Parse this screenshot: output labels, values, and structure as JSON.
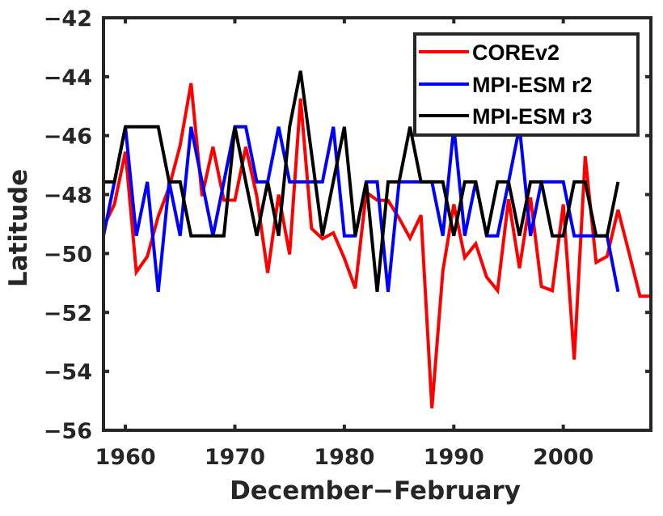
{
  "chart_data": {
    "type": "line",
    "title": "",
    "xlabel": "December−February",
    "ylabel": "Latitude",
    "xlim": [
      1958,
      2008
    ],
    "ylim": [
      -56,
      -42
    ],
    "xticks": [
      1960,
      1970,
      1980,
      1990,
      2000
    ],
    "xtick_labels": [
      "1960",
      "1970",
      "1980",
      "1990",
      "2000"
    ],
    "yticks": [
      -42,
      -44,
      -46,
      -48,
      -50,
      -52,
      -54,
      -56
    ],
    "ytick_labels": [
      "−42",
      "−44",
      "−46",
      "−48",
      "−50",
      "−52",
      "−54",
      "−56"
    ],
    "grid": false,
    "legend_position": "top-right",
    "series": [
      {
        "name": "COREv2",
        "color": "#ff0000",
        "x_start": 1958,
        "values": [
          -49.1,
          -48.33,
          -46.55,
          -50.63,
          -50.1,
          -48.74,
          -47.75,
          -46.33,
          -44.22,
          -48.05,
          -46.38,
          -48.19,
          -48.19,
          -46.38,
          -48.05,
          -50.66,
          -48.0,
          -50.03,
          -44.74,
          -49.15,
          -49.5,
          -49.3,
          -50.16,
          -51.18,
          -47.92,
          -48.19,
          -48.2,
          -48.8,
          -49.48,
          -48.7,
          -55.25,
          -50.6,
          -48.33,
          -50.14,
          -49.67,
          -50.8,
          -51.26,
          -48.16,
          -50.5,
          -48.1,
          -51.12,
          -51.26,
          -48.33,
          -53.6,
          -46.7,
          -50.3,
          -50.1,
          -48.52,
          -49.97,
          -51.45,
          -51.45
        ]
      },
      {
        "name": "MPI-ESM r2",
        "color": "#0000ff",
        "x_start": 1958,
        "values": [
          -49.4,
          -47.57,
          -45.7,
          -49.4,
          -47.57,
          -51.3,
          -47.57,
          -49.4,
          -45.7,
          -47.57,
          -49.4,
          -47.57,
          -45.7,
          -45.7,
          -47.57,
          -47.57,
          -45.7,
          -47.57,
          -47.57,
          -47.57,
          -47.57,
          -45.7,
          -49.4,
          -49.4,
          -47.57,
          -47.57,
          -51.3,
          -47.57,
          -47.57,
          -47.57,
          -47.57,
          -49.4,
          -45.7,
          -49.4,
          -47.57,
          -49.4,
          -49.4,
          -47.57,
          -45.7,
          -49.4,
          -47.57,
          -47.57,
          -47.57,
          -49.4,
          -49.4,
          -49.4,
          -49.4,
          -51.3
        ]
      },
      {
        "name": "MPI-ESM r3",
        "color": "#000000",
        "x_start": 1958,
        "values": [
          -47.57,
          -47.57,
          -45.7,
          -45.7,
          -45.7,
          -45.7,
          -47.57,
          -47.57,
          -49.4,
          -49.4,
          -49.4,
          -49.4,
          -45.7,
          -47.57,
          -49.4,
          -47.57,
          -49.4,
          -45.7,
          -43.8,
          -46.6,
          -49.4,
          -47.55,
          -45.7,
          -49.4,
          -47.57,
          -51.3,
          -47.57,
          -47.57,
          -45.7,
          -47.57,
          -47.57,
          -47.57,
          -49.4,
          -47.57,
          -47.57,
          -49.4,
          -47.57,
          -47.57,
          -49.4,
          -47.57,
          -47.57,
          -49.4,
          -49.4,
          -47.57,
          -47.57,
          -49.4,
          -49.4,
          -47.57
        ]
      }
    ]
  },
  "colors": {
    "axis": "#262626",
    "background": "#ffffff"
  }
}
